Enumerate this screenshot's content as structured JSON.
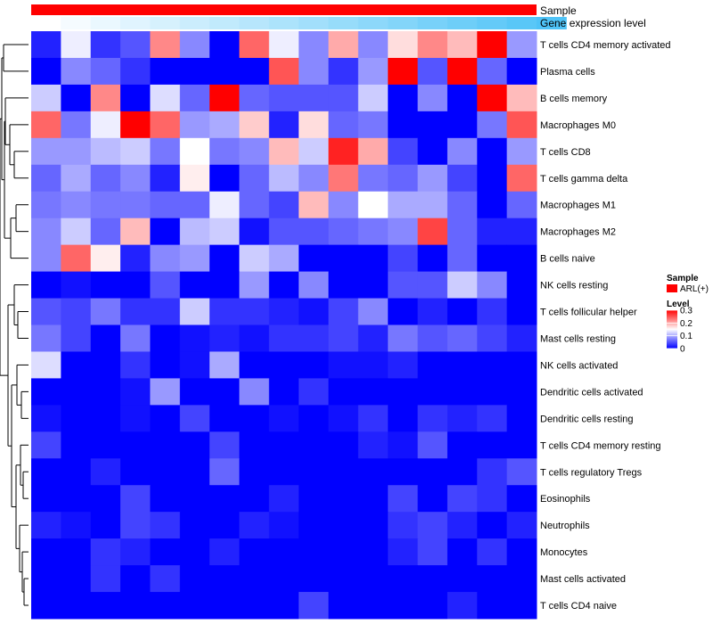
{
  "chart_data": {
    "type": "heatmap",
    "top_annotations": [
      {
        "label": "Sample"
      },
      {
        "label": "Gene expression level"
      }
    ],
    "gene_expression_level": [
      0.0,
      0.05,
      0.1,
      0.15,
      0.2,
      0.25,
      0.3,
      0.35,
      0.4,
      0.45,
      0.5,
      0.55,
      0.6,
      0.65,
      0.7,
      0.75,
      0.8,
      0.85
    ],
    "rows": [
      {
        "label": "T cells CD4 memory activated",
        "values": [
          0.02,
          0.14,
          0.03,
          0.05,
          0.22,
          0.08,
          0.0,
          0.24,
          0.14,
          0.08,
          0.2,
          0.08,
          0.17,
          0.22,
          0.19,
          0.3,
          0.09
        ]
      },
      {
        "label": "Plasma cells",
        "values": [
          0.0,
          0.08,
          0.06,
          0.03,
          0.0,
          0.0,
          0.0,
          0.0,
          0.25,
          0.08,
          0.03,
          0.09,
          0.32,
          0.05,
          0.31,
          0.06,
          0.0
        ]
      },
      {
        "label": "B cells memory",
        "values": [
          0.12,
          0.0,
          0.22,
          0.0,
          0.13,
          0.06,
          0.31,
          0.06,
          0.05,
          0.05,
          0.05,
          0.12,
          0.0,
          0.08,
          0.0,
          0.31,
          0.19
        ]
      },
      {
        "label": "Macrophages M0",
        "values": [
          0.24,
          0.07,
          0.14,
          0.31,
          0.24,
          0.09,
          0.1,
          0.18,
          0.02,
          0.17,
          0.06,
          0.07,
          0.0,
          0.0,
          0.0,
          0.07,
          0.25
        ]
      },
      {
        "label": "T cells CD8",
        "values": [
          0.09,
          0.09,
          0.11,
          0.12,
          0.07,
          0.15,
          0.07,
          0.08,
          0.19,
          0.12,
          0.28,
          0.2,
          0.04,
          0.0,
          0.08,
          0.0,
          0.09
        ]
      },
      {
        "label": "T cells gamma delta",
        "values": [
          0.06,
          0.1,
          0.06,
          0.08,
          0.02,
          0.16,
          0.0,
          0.06,
          0.11,
          0.08,
          0.23,
          0.07,
          0.06,
          0.09,
          0.04,
          0.0,
          0.24
        ]
      },
      {
        "label": "Macrophages M1",
        "values": [
          0.07,
          0.08,
          0.07,
          0.07,
          0.06,
          0.06,
          0.14,
          0.06,
          0.04,
          0.19,
          0.08,
          0.15,
          0.1,
          0.1,
          0.06,
          0.0,
          0.06
        ]
      },
      {
        "label": "Macrophages M2",
        "values": [
          0.08,
          0.12,
          0.06,
          0.19,
          0.0,
          0.11,
          0.12,
          0.01,
          0.05,
          0.05,
          0.06,
          0.07,
          0.08,
          0.26,
          0.06,
          0.02,
          0.02
        ]
      },
      {
        "label": "B cells naive",
        "values": [
          0.08,
          0.24,
          0.16,
          0.02,
          0.08,
          0.09,
          0.0,
          0.12,
          0.1,
          0.0,
          0.0,
          0.0,
          0.04,
          0.0,
          0.06,
          0.0,
          0.0
        ]
      },
      {
        "label": "NK cells resting",
        "values": [
          0.0,
          0.01,
          0.0,
          0.0,
          0.05,
          0.0,
          0.0,
          0.09,
          0.0,
          0.08,
          0.0,
          0.0,
          0.05,
          0.05,
          0.12,
          0.08,
          0.0
        ]
      },
      {
        "label": "T cells follicular helper",
        "values": [
          0.05,
          0.04,
          0.07,
          0.03,
          0.03,
          0.12,
          0.03,
          0.03,
          0.02,
          0.01,
          0.04,
          0.08,
          0.0,
          0.02,
          0.0,
          0.03,
          0.0
        ]
      },
      {
        "label": "Mast cells resting",
        "values": [
          0.07,
          0.04,
          0.0,
          0.07,
          0.0,
          0.01,
          0.02,
          0.01,
          0.03,
          0.03,
          0.04,
          0.02,
          0.07,
          0.05,
          0.06,
          0.04,
          0.02
        ]
      },
      {
        "label": "NK cells activated",
        "values": [
          0.13,
          0.0,
          0.0,
          0.03,
          0.0,
          0.01,
          0.1,
          0.0,
          0.0,
          0.0,
          0.01,
          0.01,
          0.02,
          0.0,
          0.0,
          0.0,
          0.0
        ]
      },
      {
        "label": "Dendritic cells activated",
        "values": [
          0.0,
          0.0,
          0.0,
          0.01,
          0.09,
          0.0,
          0.0,
          0.08,
          0.0,
          0.03,
          0.0,
          0.0,
          0.0,
          0.0,
          0.0,
          0.0,
          0.0
        ]
      },
      {
        "label": "Dendritic cells resting",
        "values": [
          0.01,
          0.0,
          0.0,
          0.01,
          0.0,
          0.04,
          0.0,
          0.0,
          0.01,
          0.0,
          0.01,
          0.03,
          0.0,
          0.03,
          0.02,
          0.03,
          0.0
        ]
      },
      {
        "label": "T cells CD4 memory resting",
        "values": [
          0.04,
          0.0,
          0.0,
          0.0,
          0.0,
          0.0,
          0.04,
          0.0,
          0.0,
          0.0,
          0.0,
          0.02,
          0.01,
          0.05,
          0.0,
          0.0,
          0.0
        ]
      },
      {
        "label": "T cells regulatory  Tregs",
        "values": [
          0.0,
          0.0,
          0.02,
          0.0,
          0.0,
          0.0,
          0.06,
          0.0,
          0.0,
          0.0,
          0.0,
          0.0,
          0.0,
          0.0,
          0.0,
          0.03,
          0.05
        ]
      },
      {
        "label": "Eosinophils",
        "values": [
          0.0,
          0.0,
          0.0,
          0.04,
          0.0,
          0.0,
          0.0,
          0.0,
          0.02,
          0.0,
          0.0,
          0.0,
          0.04,
          0.0,
          0.04,
          0.03,
          0.0
        ]
      },
      {
        "label": "Neutrophils",
        "values": [
          0.02,
          0.01,
          0.0,
          0.04,
          0.03,
          0.0,
          0.0,
          0.02,
          0.01,
          0.0,
          0.0,
          0.0,
          0.03,
          0.04,
          0.02,
          0.0,
          0.02
        ]
      },
      {
        "label": "Monocytes",
        "values": [
          0.0,
          0.0,
          0.03,
          0.02,
          0.0,
          0.0,
          0.02,
          0.0,
          0.0,
          0.0,
          0.0,
          0.0,
          0.02,
          0.04,
          0.0,
          0.03,
          0.0
        ]
      },
      {
        "label": "Mast cells activated",
        "values": [
          0.0,
          0.0,
          0.03,
          0.0,
          0.03,
          0.0,
          0.0,
          0.0,
          0.0,
          0.0,
          0.0,
          0.0,
          0.0,
          0.0,
          0.0,
          0.0,
          0.0
        ]
      },
      {
        "label": "T cells CD4 naive",
        "values": [
          0.0,
          0.0,
          0.0,
          0.0,
          0.0,
          0.0,
          0.0,
          0.0,
          0.0,
          0.04,
          0.0,
          0.0,
          0.0,
          0.0,
          0.02,
          0.0,
          0.0
        ]
      }
    ],
    "value_range": [
      0,
      0.3
    ],
    "colors": {
      "low": "#0000ff",
      "mid": "#ffffff",
      "high": "#ff0000",
      "sample_bar": "#ff0000",
      "expr_low": "#ffffff",
      "expr_high": "#4fc3f7"
    },
    "legend": {
      "sample": {
        "title": "Sample",
        "items": [
          "ARL(+)"
        ]
      },
      "level": {
        "title": "Level",
        "ticks": [
          0.3,
          0.2,
          0.1,
          0
        ],
        "tick_labels": [
          "0.3",
          "0.2",
          "0.1",
          "0"
        ]
      }
    }
  }
}
